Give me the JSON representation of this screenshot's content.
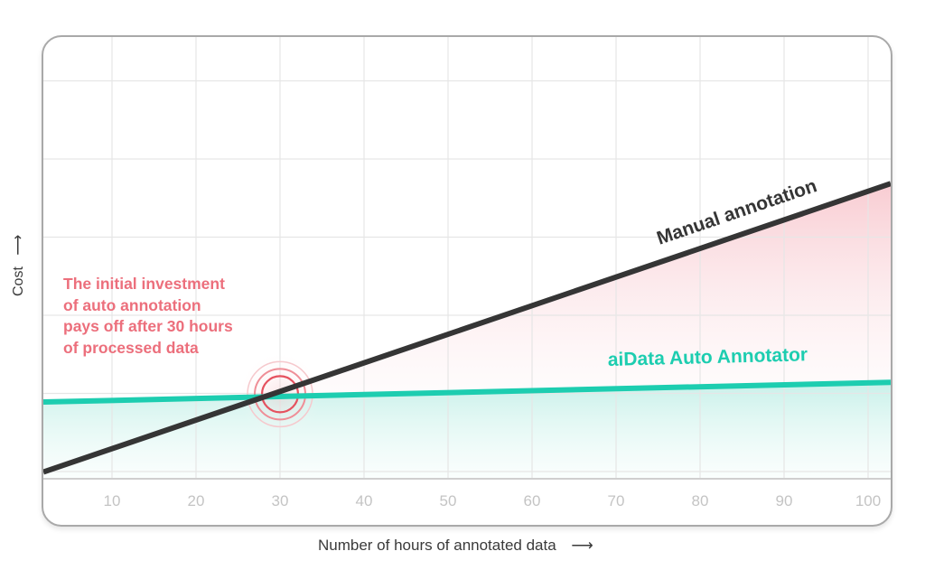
{
  "chart_data": {
    "type": "line",
    "title": "",
    "xlabel": "Number of hours of annotated data",
    "ylabel": "Cost",
    "xlabel_arrow": "⟶",
    "ylabel_arrow": "⟶",
    "x_ticks": [
      "10",
      "20",
      "30",
      "40",
      "50",
      "60",
      "70",
      "80",
      "90",
      "100"
    ],
    "xlim": [
      2,
      102
    ],
    "ylim": [
      0,
      5
    ],
    "y_ticks_shown": false,
    "grid": true,
    "series": [
      {
        "name": "Manual annotation",
        "color": "#353535",
        "x": [
          2,
          102
        ],
        "values": [
          0.0,
          3.66
        ],
        "fill": "#f7c9cf"
      },
      {
        "name": "aiData Auto Annotator",
        "color": "#1dcdb0",
        "x": [
          2,
          102
        ],
        "values": [
          0.89,
          1.14
        ],
        "fill": "#c8f1ea"
      }
    ],
    "annotations": [
      {
        "type": "callout-text",
        "text_lines": [
          "The initial investment",
          "of auto annotation",
          "pays off after 30 hours",
          "of processed data"
        ],
        "color": "#ec6f7c"
      },
      {
        "type": "break-even-marker",
        "x": 30,
        "y": 0.99,
        "color": "#e5525f"
      }
    ],
    "legend_position": "inline-labels"
  }
}
